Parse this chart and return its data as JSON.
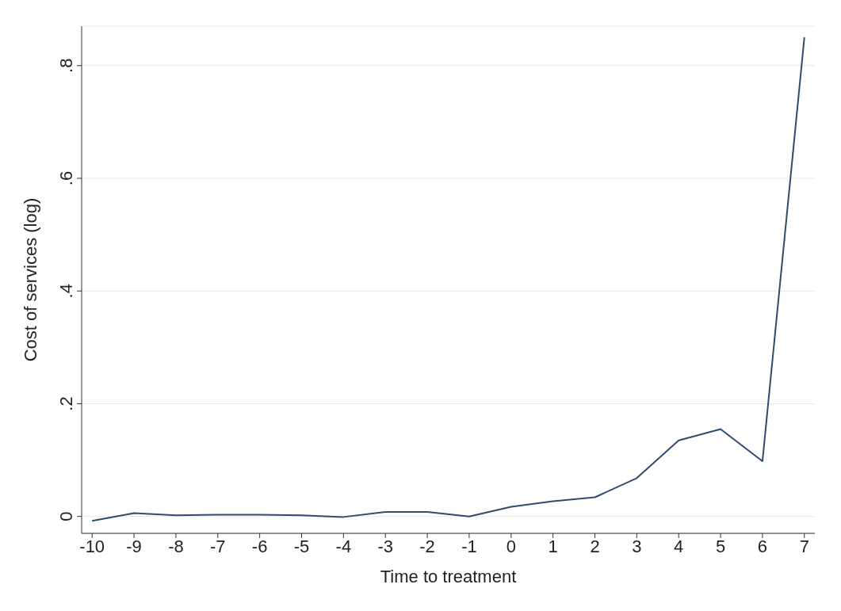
{
  "chart_data": {
    "type": "line",
    "xlabel": "Time to treatment",
    "ylabel": "Cost of services (log)",
    "x": [
      -10,
      -9,
      -8,
      -7,
      -6,
      -5,
      -4,
      -3,
      -2,
      -1,
      0,
      1,
      2,
      3,
      4,
      5,
      6,
      7
    ],
    "series": [
      {
        "color": "#2f4b6e",
        "values": [
          -0.008,
          0.006,
          0.002,
          0.003,
          0.003,
          0.002,
          -0.001,
          0.008,
          0.008,
          0,
          0.017,
          0.027,
          0.034,
          0.068,
          0.135,
          0.155,
          0.098,
          0.85
        ]
      }
    ],
    "xlim": [
      -10.25,
      7.25
    ],
    "ylim": [
      -0.03,
      0.87
    ],
    "xticks": [
      -10,
      -9,
      -8,
      -7,
      -6,
      -5,
      -4,
      -3,
      -2,
      -1,
      0,
      1,
      2,
      3,
      4,
      5,
      6,
      7
    ],
    "yticks": [
      0,
      {
        "value": 0.2,
        "label": ".2"
      },
      {
        "value": 0.4,
        "label": ".4"
      },
      {
        "value": 0.6,
        "label": ".6"
      },
      {
        "value": 0.8,
        "label": ".8"
      }
    ],
    "grid": "y",
    "marker": "none",
    "line_style": "solid"
  }
}
